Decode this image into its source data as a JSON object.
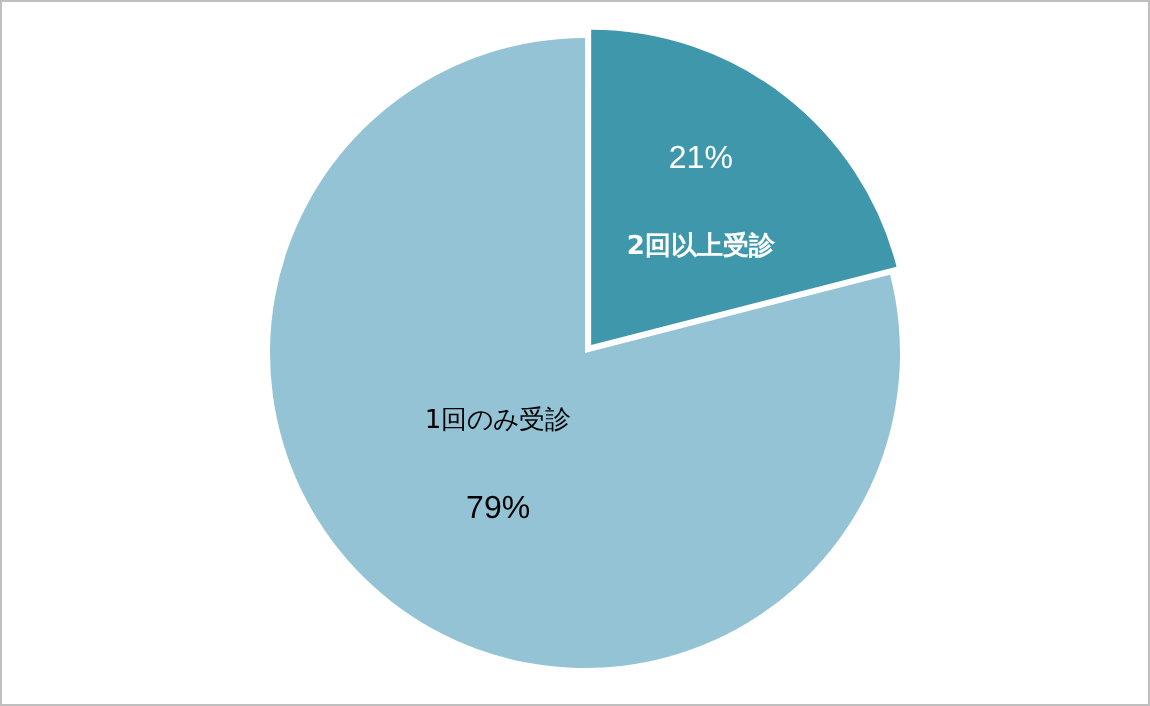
{
  "chart_data": {
    "type": "pie",
    "categories": [
      "2回以上受診",
      "1回のみ受診"
    ],
    "values": [
      21,
      79
    ],
    "colors": [
      "#3f97ab",
      "#93c3d4"
    ],
    "value_labels": [
      "21%",
      "79%"
    ],
    "legend": false
  }
}
